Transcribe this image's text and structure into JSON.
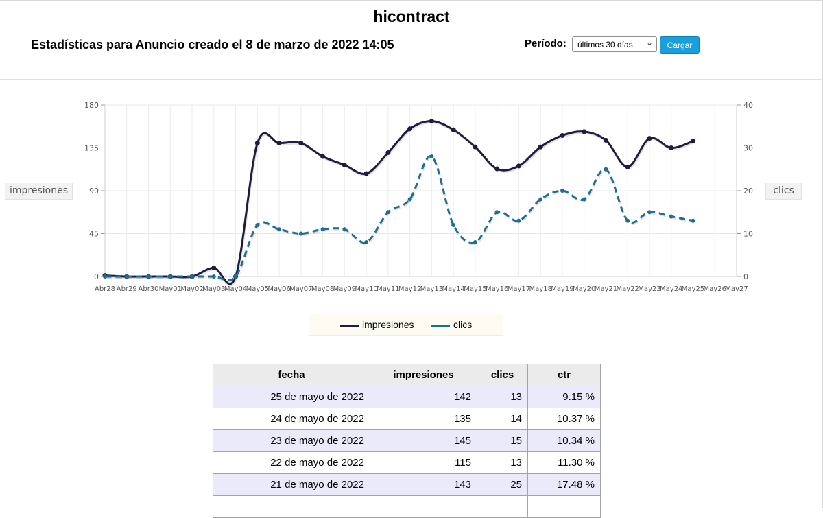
{
  "app_title": "hicontract",
  "stats_title": "Estadísticas para Anuncio creado el 8 de marzo de 2022 14:05",
  "period": {
    "label": "Período:",
    "selected": "últimos 30 días",
    "button": "Cargar"
  },
  "axis_buttons": {
    "left": "impresiones",
    "right": "clics"
  },
  "legend": {
    "impressions": "impresiones",
    "clicks": "clics"
  },
  "colors": {
    "impressions": "#1f1d3f",
    "clicks": "#1d6d96",
    "button": "#1a9fdd",
    "row_alt": "#eaeafb"
  },
  "chart_data": {
    "type": "line",
    "x": [
      "Abr28",
      "Abr29",
      "Abr30",
      "May01",
      "May02",
      "May03",
      "May04",
      "May05",
      "May06",
      "May07",
      "May08",
      "May09",
      "May10",
      "May11",
      "May12",
      "May13",
      "May14",
      "May15",
      "May16",
      "May17",
      "May18",
      "May19",
      "May20",
      "May21",
      "May22",
      "May23",
      "May24",
      "May25",
      "May26",
      "May27"
    ],
    "series": [
      {
        "name": "impresiones",
        "axis": "left",
        "style": "solid",
        "values": [
          1,
          0,
          0,
          0,
          0,
          9,
          0,
          140,
          140,
          140,
          126,
          117,
          108,
          130,
          155,
          163,
          154,
          136,
          113,
          116,
          136,
          148,
          152,
          143,
          115,
          145,
          135,
          142,
          null,
          null
        ]
      },
      {
        "name": "clics",
        "axis": "right",
        "style": "dashed",
        "values": [
          0,
          0,
          0,
          0,
          0,
          0,
          0,
          12,
          11,
          10,
          11,
          11,
          8,
          15,
          18,
          28,
          12,
          8,
          15,
          13,
          18,
          20,
          18,
          25,
          13,
          15,
          14,
          13,
          null,
          null
        ]
      }
    ],
    "y_left": {
      "ticks": [
        0,
        45,
        90,
        135,
        180
      ],
      "ylim": [
        0,
        180
      ]
    },
    "y_right": {
      "ticks": [
        0,
        10,
        20,
        30,
        40
      ],
      "ylim": [
        0,
        40
      ]
    },
    "grid": true,
    "legend_position": "bottom"
  },
  "table": {
    "headers": [
      "fecha",
      "impresiones",
      "clics",
      "ctr"
    ],
    "rows": [
      [
        "25 de mayo de 2022",
        "142",
        "13",
        "9.15 %"
      ],
      [
        "24 de mayo de 2022",
        "135",
        "14",
        "10.37 %"
      ],
      [
        "23 de mayo de 2022",
        "145",
        "15",
        "10.34 %"
      ],
      [
        "22 de mayo de 2022",
        "115",
        "13",
        "11.30 %"
      ],
      [
        "21 de mayo de 2022",
        "143",
        "25",
        "17.48 %"
      ],
      [
        "",
        "",
        "",
        ""
      ]
    ]
  }
}
